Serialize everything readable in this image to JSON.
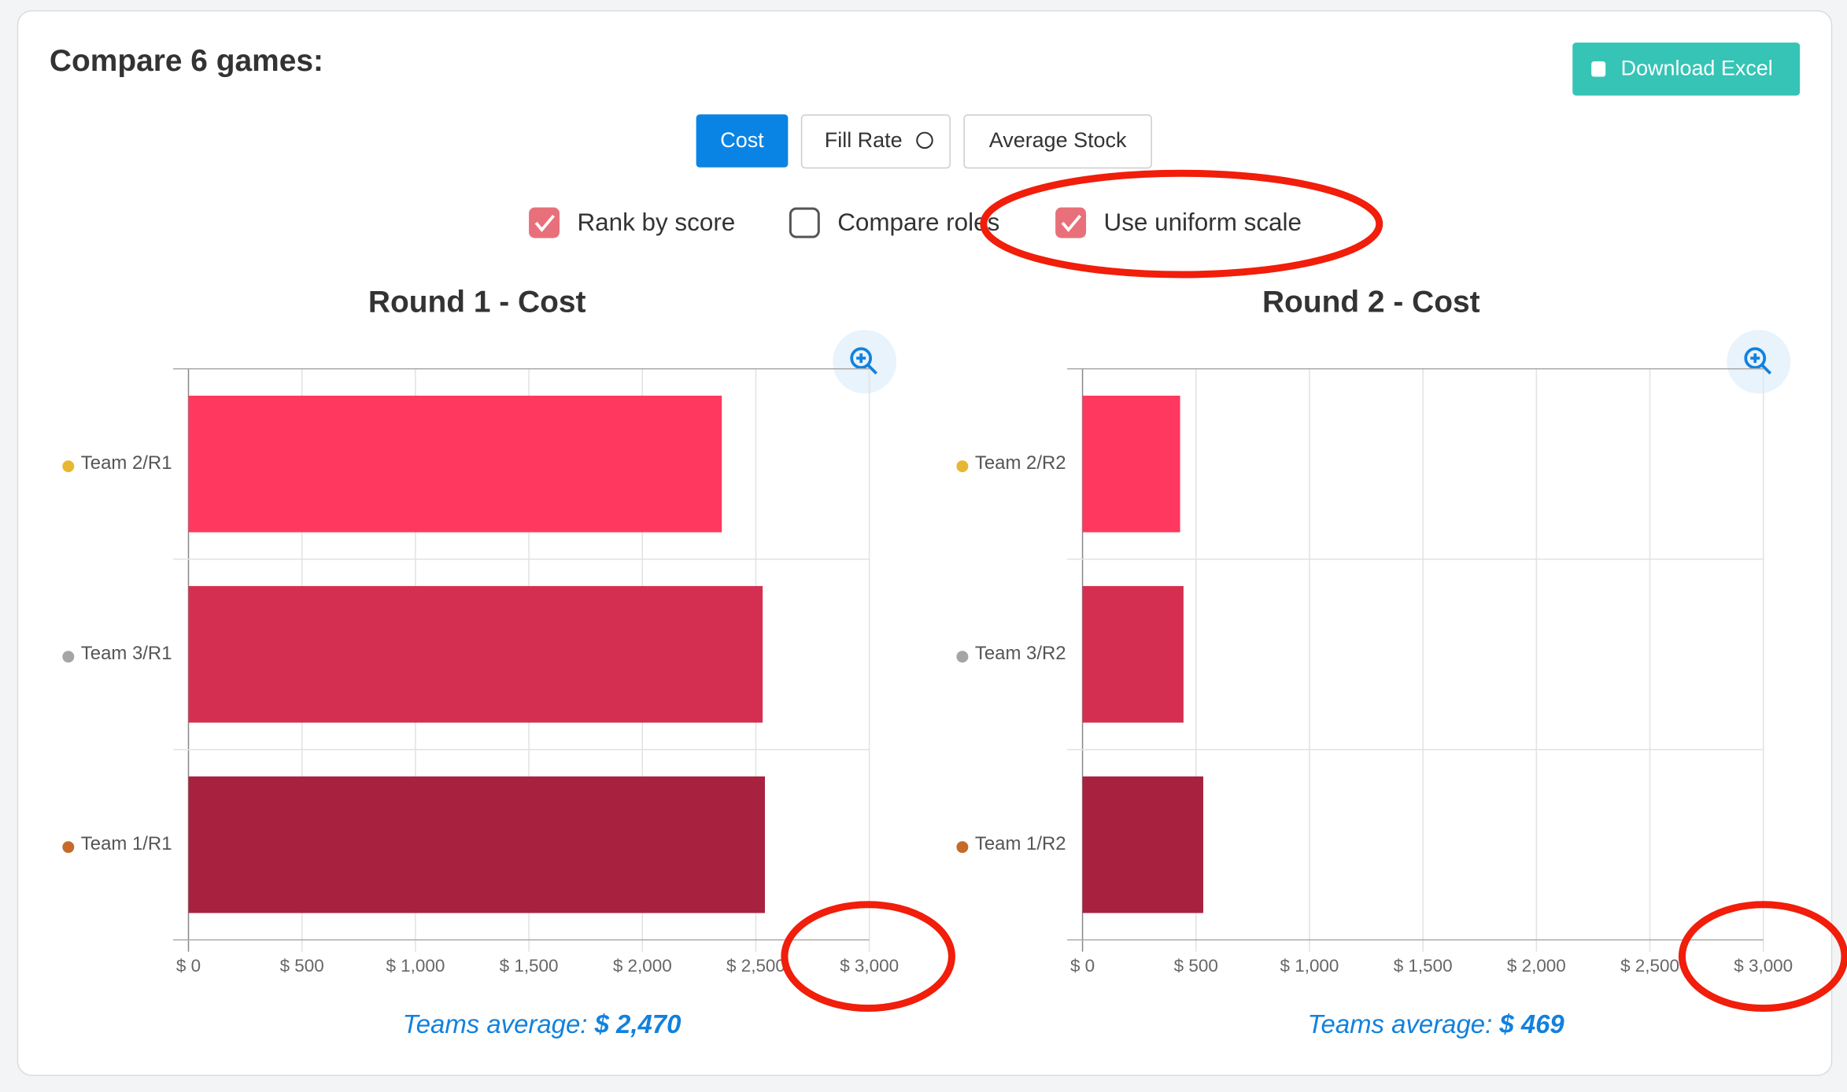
{
  "header": {
    "title": "Compare 6 games:",
    "download": "Download Excel"
  },
  "tabs": [
    "Cost",
    "Fill Rate",
    "Average Stock"
  ],
  "options": [
    {
      "label": "Rank by score",
      "checked": true
    },
    {
      "label": "Compare roles",
      "checked": false
    },
    {
      "label": "Use uniform scale",
      "checked": true
    }
  ],
  "chart_data": [
    {
      "type": "bar",
      "orientation": "horizontal",
      "title": "Round 1 - Cost",
      "categories": [
        "Team 2/R1",
        "Team 3/R1",
        "Team 1/R1"
      ],
      "values": [
        2350,
        2530,
        2540
      ],
      "colors": [
        "#fe385f",
        "#d42f50",
        "#a8223f"
      ],
      "xlim": [
        0,
        3000
      ],
      "xticks": [
        {
          "value": 0,
          "label": "$ 0"
        },
        {
          "value": 500,
          "label": "$ 500"
        },
        {
          "value": 1000,
          "label": "$ 1,000"
        },
        {
          "value": 1500,
          "label": "$ 1,500"
        },
        {
          "value": 2000,
          "label": "$ 2,000"
        },
        {
          "value": 2500,
          "label": "$ 2,500"
        },
        {
          "value": 3000,
          "label": "$ 3,000"
        }
      ],
      "grid": true,
      "average_text": "Teams average:",
      "average_value": "$ 2,470"
    },
    {
      "type": "bar",
      "orientation": "horizontal",
      "title": "Round 2 - Cost",
      "categories": [
        "Team 2/R2",
        "Team 3/R2",
        "Team 1/R2"
      ],
      "values": [
        430,
        445,
        532
      ],
      "colors": [
        "#fe385f",
        "#d42f50",
        "#a8223f"
      ],
      "xlim": [
        0,
        3000
      ],
      "xticks": [
        {
          "value": 0,
          "label": "$ 0"
        },
        {
          "value": 500,
          "label": "$ 500"
        },
        {
          "value": 1000,
          "label": "$ 1,000"
        },
        {
          "value": 1500,
          "label": "$ 1,500"
        },
        {
          "value": 2000,
          "label": "$ 2,000"
        },
        {
          "value": 2500,
          "label": "$ 2,500"
        },
        {
          "value": 3000,
          "label": "$ 3,000"
        }
      ],
      "grid": true,
      "average_text": "Teams average:",
      "average_value": "$ 469"
    }
  ]
}
